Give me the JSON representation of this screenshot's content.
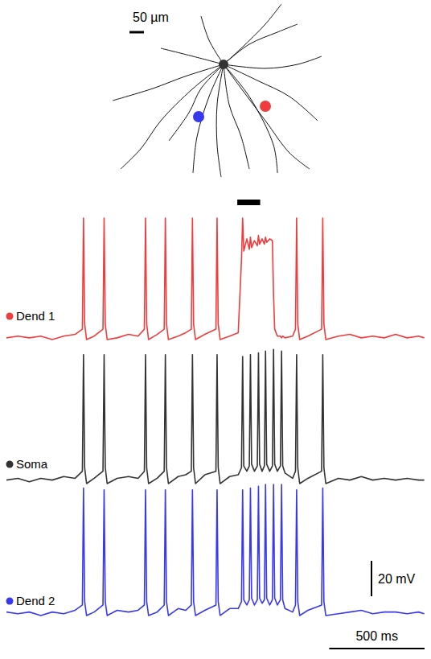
{
  "chart_data": {
    "type": "line",
    "tick_labels": false,
    "xlim": [
      0,
      2200
    ],
    "ylim": [
      -72,
      10
    ],
    "x": [
      0,
      60,
      120,
      180,
      240,
      300,
      360,
      398,
      404,
      410,
      420,
      460,
      506,
      512,
      518,
      528,
      580,
      640,
      690,
      723,
      729,
      735,
      745,
      790,
      827,
      833,
      839,
      849,
      900,
      940,
      969,
      975,
      981,
      991,
      1040,
      1098,
      1104,
      1110,
      1120,
      1170,
      1215,
      1232,
      1238,
      1244,
      1260,
      1273,
      1279,
      1285,
      1300,
      1315,
      1321,
      1327,
      1340,
      1352,
      1358,
      1364,
      1380,
      1394,
      1400,
      1406,
      1420,
      1436,
      1442,
      1448,
      1460,
      1500,
      1515,
      1521,
      1527,
      1537,
      1580,
      1652,
      1658,
      1664,
      1674,
      1740,
      1800,
      1860,
      1920,
      1980,
      2040,
      2100,
      2160,
      2190
    ],
    "series": [
      {
        "name": "Dend 1",
        "color": "#f03c3c",
        "values": [
          -65,
          -64,
          -65,
          -64,
          -66,
          -64,
          -63,
          -60,
          4,
          -57,
          -66,
          -64,
          -60,
          4,
          -57,
          -66,
          -65,
          -63,
          -64,
          -60,
          4,
          -57,
          -66,
          -63,
          -60,
          4,
          -57,
          -66,
          -64,
          -62,
          -60,
          4,
          -57,
          -66,
          -63,
          -60,
          4,
          -57,
          -66,
          -64,
          -62,
          -20,
          4,
          -15,
          -8,
          -14,
          -7,
          -13,
          -9,
          -12,
          -6,
          -11,
          -8,
          -11,
          -7,
          -10,
          -8,
          -9,
          -40,
          -60,
          -64,
          -64,
          -65,
          -64,
          -65,
          -64,
          -60,
          4,
          -57,
          -66,
          -64,
          -60,
          4,
          -57,
          -66,
          -64,
          -63,
          -65,
          -64,
          -65,
          -63,
          -65,
          -64,
          -65
        ]
      },
      {
        "name": "Soma",
        "color": "#333333",
        "values": [
          -65,
          -64,
          -66,
          -64,
          -65,
          -63,
          -64,
          -60,
          6,
          -58,
          -67,
          -64,
          -60,
          6,
          -58,
          -67,
          -64,
          -63,
          -64,
          -60,
          6,
          -58,
          -67,
          -64,
          -60,
          6,
          -58,
          -67,
          -63,
          -62,
          -60,
          6,
          -58,
          -67,
          -62,
          -60,
          6,
          -58,
          -67,
          -63,
          -62,
          -58,
          5,
          -57,
          -60,
          -57,
          6,
          -56,
          -60,
          -57,
          7,
          -56,
          -60,
          -57,
          8,
          -56,
          -60,
          -57,
          9,
          -56,
          -60,
          -57,
          8,
          -57,
          -61,
          -64,
          -60,
          6,
          -58,
          -67,
          -64,
          -60,
          6,
          -58,
          -67,
          -64,
          -65,
          -63,
          -65,
          -64,
          -65,
          -64,
          -65,
          -65
        ]
      },
      {
        "name": "Dend 2",
        "color": "#3838ee",
        "values": [
          -64,
          -65,
          -64,
          -66,
          -64,
          -65,
          -63,
          -60,
          7,
          -58,
          -66,
          -64,
          -60,
          6,
          -58,
          -66,
          -63,
          -64,
          -63,
          -60,
          6,
          -58,
          -66,
          -64,
          -60,
          6,
          -58,
          -66,
          -62,
          -63,
          -60,
          6,
          -58,
          -66,
          -63,
          -60,
          6,
          -58,
          -66,
          -62,
          -62,
          -58,
          6,
          -57,
          -60,
          -57,
          7,
          -56,
          -60,
          -57,
          8,
          -56,
          -59,
          -57,
          9,
          -56,
          -60,
          -57,
          9,
          -56,
          -60,
          -57,
          9,
          -57,
          -62,
          -64,
          -60,
          6,
          -58,
          -66,
          -63,
          -60,
          7,
          -58,
          -66,
          -65,
          -64,
          -63,
          -65,
          -64,
          -64,
          -65,
          -64,
          -65
        ]
      }
    ],
    "stimulus": [
      1210,
      1330
    ],
    "scale_bars": [
      {
        "value": 20,
        "label": "20 mV"
      },
      {
        "value": 500,
        "label": "500 ms"
      }
    ],
    "morphology_scale_bar": {
      "value": 50,
      "label": "50 µm"
    }
  }
}
